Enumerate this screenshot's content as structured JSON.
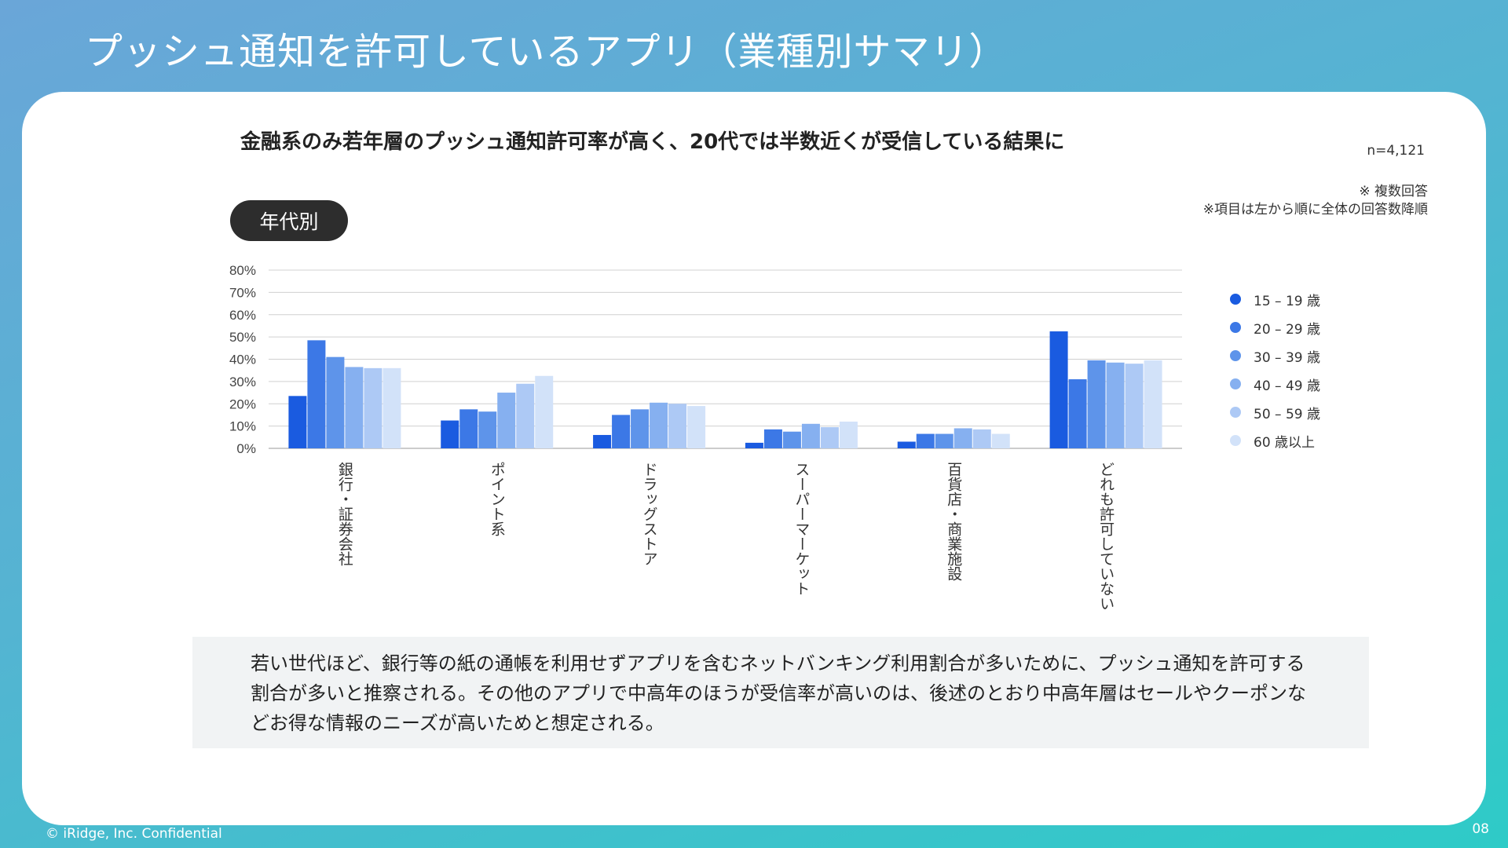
{
  "slide": {
    "title": "プッシュ通知を許可しているアプリ（業種別サマリ）",
    "headline": "金融系のみ若年層のプッシュ通知許可率が高く、20代では半数近くが受信している結果に",
    "sample_size": "n=4,121",
    "note_multiple": "※ 複数回答",
    "note_order": "※項目は左から順に全体の回答数降順",
    "segment_pill": "年代別",
    "summary": "若い世代ほど、銀行等の紙の通帳を利用せずアプリを含むネットバンキング利用割合が多いために、プッシュ通知を許可する割合が多いと推察される。その他のアプリで中高年のほうが受信率が高いのは、後述のとおり中高年層はセールやクーポンなどお得な情報のニーズが高いためと想定される。",
    "copyright": "© iRidge, Inc. Confidential",
    "page_number": "08"
  },
  "chart_data": {
    "type": "bar",
    "title": "",
    "xlabel": "",
    "ylabel": "",
    "ylim": [
      0,
      80
    ],
    "y_ticks": [
      "0%",
      "10%",
      "20%",
      "30%",
      "40%",
      "50%",
      "60%",
      "70%",
      "80%"
    ],
    "grid": true,
    "legend_position": "right",
    "categories": [
      "銀行・証券会社",
      "ポイント系",
      "ドラッグストア",
      "スーパーマーケット",
      "百貨店・商業施設",
      "どれも許可していない"
    ],
    "series": [
      {
        "name": "15 – 19 歳",
        "color": "#1a5be0",
        "values": [
          23.5,
          12.5,
          6,
          2.5,
          3,
          52.5
        ]
      },
      {
        "name": "20 – 29 歳",
        "color": "#3c78e6",
        "values": [
          48.5,
          17.5,
          15,
          8.5,
          6.5,
          31
        ]
      },
      {
        "name": "30 – 39 歳",
        "color": "#5e94ea",
        "values": [
          41,
          16.5,
          17.5,
          7.5,
          6.5,
          39.5
        ]
      },
      {
        "name": "40 – 49 歳",
        "color": "#86b0f0",
        "values": [
          36.5,
          25,
          20.5,
          11,
          9,
          38.5
        ]
      },
      {
        "name": "50 – 59 歳",
        "color": "#adc9f5",
        "values": [
          36,
          29,
          20,
          9.5,
          8.5,
          38
        ]
      },
      {
        "name": "60 歳以上",
        "color": "#d2e2f9",
        "values": [
          36,
          32.5,
          19,
          12,
          6.5,
          39.5
        ]
      }
    ]
  }
}
